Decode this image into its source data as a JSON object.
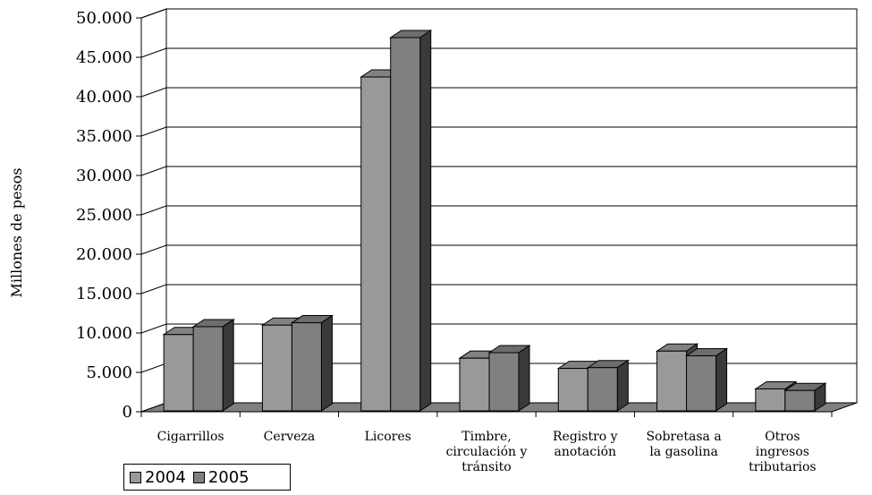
{
  "chart_data": {
    "type": "bar",
    "title": "",
    "xlabel": "",
    "ylabel": "Millones de pesos",
    "ylim": [
      0,
      50000
    ],
    "yticks": [
      "0",
      "5.000",
      "10.000",
      "15.000",
      "20.000",
      "25.000",
      "30.000",
      "35.000",
      "40.000",
      "45.000",
      "50.000"
    ],
    "categories": [
      [
        "Cigarrillos"
      ],
      [
        "Cerveza"
      ],
      [
        "Licores"
      ],
      [
        "Timbre,",
        "circulación y",
        "tránsito"
      ],
      [
        "Registro y",
        "anotación"
      ],
      [
        "Sobretasa a",
        "la gasolina"
      ],
      [
        "Otros",
        "ingresos",
        "tributarios"
      ]
    ],
    "series": [
      {
        "name": "2004",
        "color": "#999999",
        "values": [
          9800,
          11000,
          42500,
          6800,
          5500,
          7700,
          2900
        ]
      },
      {
        "name": "2005",
        "color": "#808080",
        "values": [
          10800,
          11300,
          47500,
          7500,
          5600,
          7100,
          2700
        ]
      }
    ],
    "grid": true,
    "legend": "bottom-left"
  }
}
